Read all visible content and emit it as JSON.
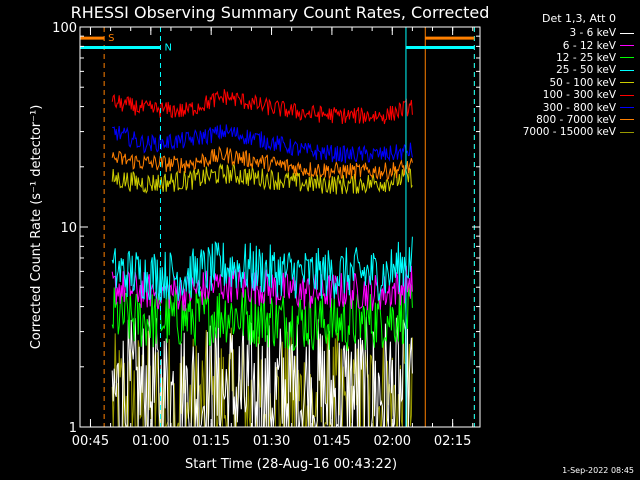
{
  "chart_data": {
    "type": "line",
    "title": "RHESSI Observing Summary Count Rates, Corrected",
    "xlabel": "Start Time (28-Aug-16 00:43:22)",
    "ylabel": "Corrected Count Rate (s⁻¹ detector⁻¹)",
    "yscale": "log",
    "ylim": [
      1,
      100
    ],
    "xlim_minutes": [
      -1.0,
      98.4
    ],
    "y_ticks": [
      "1",
      "10",
      "100"
    ],
    "x_ticks": [
      {
        "label": "00:45",
        "minute": 1.6
      },
      {
        "label": "01:00",
        "minute": 16.6
      },
      {
        "label": "01:15",
        "minute": 31.6
      },
      {
        "label": "01:30",
        "minute": 46.6
      },
      {
        "label": "01:45",
        "minute": 61.6
      },
      {
        "label": "02:00",
        "minute": 76.6
      },
      {
        "label": "02:15",
        "minute": 91.6
      }
    ],
    "data_range_minutes": [
      7.0,
      81.6
    ],
    "legend_header": "Det 1,3, Att 0",
    "series": [
      {
        "name": "3 - 6 keV",
        "color": "#ffffff",
        "x": [
          7.5,
          15,
          25,
          35,
          45,
          55,
          65,
          75,
          81
        ],
        "y": [
          1.4,
          1.5,
          1.4,
          1.5,
          1.4,
          1.5,
          1.4,
          1.5,
          1.4
        ]
      },
      {
        "name": "6 - 12 keV",
        "color": "#ff00ff",
        "x": [
          7.5,
          15,
          25,
          35,
          45,
          55,
          65,
          75,
          81
        ],
        "y": [
          5.0,
          4.8,
          4.7,
          5.2,
          5.0,
          4.7,
          4.8,
          4.7,
          5.3
        ]
      },
      {
        "name": "12 - 25 keV",
        "color": "#00ff00",
        "x": [
          7.5,
          15,
          25,
          35,
          45,
          55,
          65,
          75,
          81
        ],
        "y": [
          3.6,
          3.4,
          3.5,
          3.7,
          3.5,
          3.4,
          3.3,
          3.5,
          3.7
        ]
      },
      {
        "name": "25 - 50 keV",
        "color": "#00ffff",
        "x": [
          7.5,
          15,
          25,
          35,
          45,
          55,
          65,
          75,
          81
        ],
        "y": [
          6.0,
          5.8,
          5.7,
          6.4,
          6.1,
          5.8,
          5.9,
          5.8,
          6.8
        ]
      },
      {
        "name": "50 - 100 keV",
        "color": "#cccc00",
        "x": [
          7.5,
          15,
          25,
          35,
          45,
          55,
          65,
          75,
          81
        ],
        "y": [
          17.5,
          16.5,
          17.0,
          18.5,
          17.5,
          16.5,
          16.3,
          16.8,
          17.8
        ]
      },
      {
        "name": "100 - 300 keV",
        "color": "#ff0000",
        "x": [
          7.5,
          15,
          25,
          35,
          45,
          55,
          65,
          75,
          81
        ],
        "y": [
          42,
          39,
          38,
          45,
          40,
          37,
          36,
          36,
          40
        ]
      },
      {
        "name": "300 - 800 keV",
        "color": "#0000ff",
        "x": [
          7.5,
          15,
          25,
          35,
          45,
          55,
          65,
          75,
          81
        ],
        "y": [
          30,
          26,
          27,
          30,
          27,
          24,
          23,
          23,
          24
        ]
      },
      {
        "name": "800 - 7000 keV",
        "color": "#ff8000",
        "x": [
          7.5,
          15,
          25,
          35,
          45,
          55,
          65,
          75,
          81
        ],
        "y": [
          22,
          21,
          20.5,
          23,
          21,
          19.5,
          19,
          19,
          20
        ]
      },
      {
        "name": "7000 - 15000 keV",
        "color": "#999900",
        "x": [
          7.5,
          15,
          25,
          35,
          45,
          55,
          65,
          75,
          81
        ],
        "y": [
          1.2,
          1.3,
          1.2,
          1.3,
          1.2,
          1.3,
          1.2,
          1.3,
          1.2
        ]
      }
    ],
    "flags": [
      {
        "label": "S",
        "color": "#ff8000",
        "segments_minutes": [
          [
            -1.0,
            5.0
          ],
          [
            84.8,
            97.0
          ]
        ],
        "y": 88
      },
      {
        "label": "N",
        "color": "#00ffff",
        "segments_minutes": [
          [
            -1.0,
            19.0
          ],
          [
            80.0,
            97.0
          ]
        ],
        "y": 79
      }
    ],
    "markers": [
      {
        "color": "#ff8000",
        "style": "dashed",
        "minute": 5.0
      },
      {
        "color": "#00ffff",
        "style": "dashed",
        "minute": 19.0
      },
      {
        "color": "#00ffff",
        "style": "solid",
        "minute": 80.0
      },
      {
        "color": "#ff8000",
        "style": "solid",
        "minute": 84.8
      },
      {
        "color": "#ff8000",
        "style": "dashed",
        "minute": 97.0
      },
      {
        "color": "#00ffff",
        "style": "dashed",
        "minute": 97.0
      }
    ]
  },
  "footer_date": "1-Sep-2022 08:45"
}
